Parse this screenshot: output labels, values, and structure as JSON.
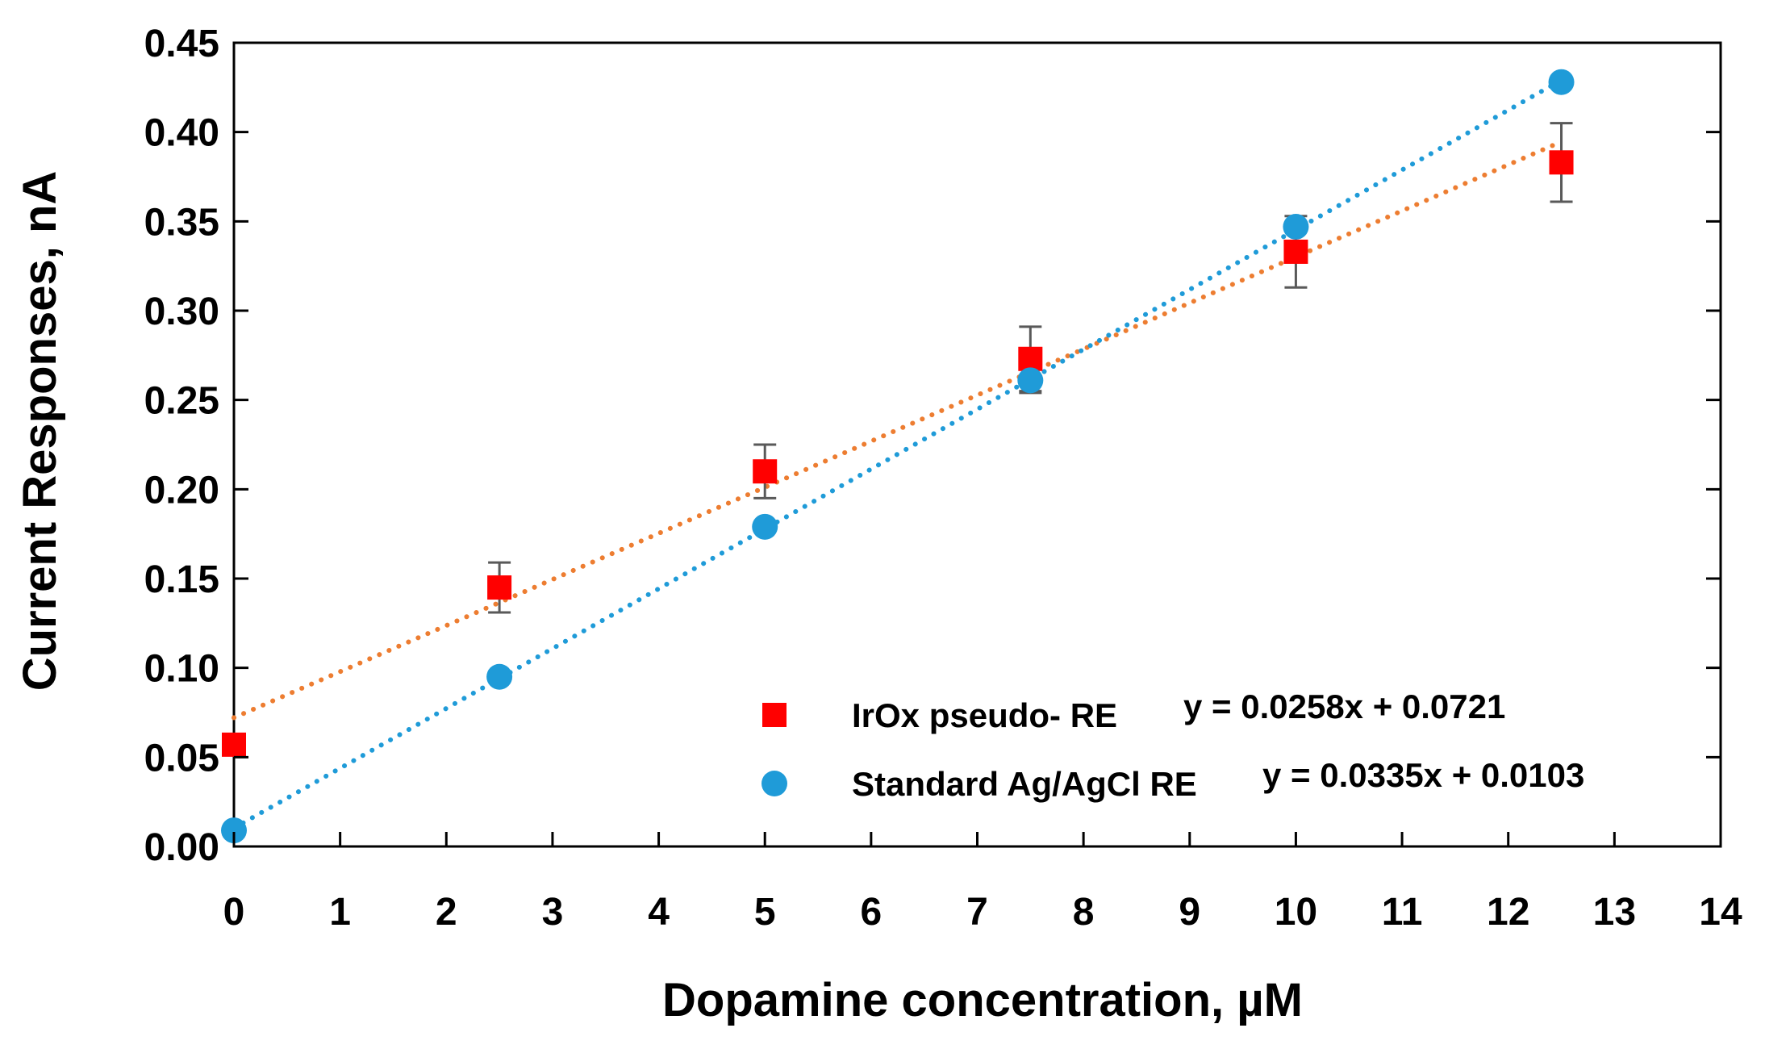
{
  "chart_data": {
    "type": "scatter",
    "xlabel": "Dopamine concentration, µM",
    "ylabel": "Current Responses, nA",
    "xlim": [
      0,
      14
    ],
    "ylim": [
      0,
      0.45
    ],
    "xticks": [
      "0",
      "1",
      "2",
      "3",
      "4",
      "5",
      "6",
      "7",
      "8",
      "9",
      "10",
      "11",
      "12",
      "13",
      "14"
    ],
    "yticks": [
      "0.00",
      "0.05",
      "0.10",
      "0.15",
      "0.20",
      "0.25",
      "0.30",
      "0.35",
      "0.40",
      "0.45"
    ],
    "grid": false,
    "legend_position": "bottom-right",
    "series": [
      {
        "name": "IrOx pseudo- RE",
        "equation": "y = 0.0258x + 0.0721",
        "marker": "square",
        "color": "#ff0000",
        "trend_color": "#ed7d31",
        "x": [
          0,
          2.5,
          5,
          7.5,
          10,
          12.5
        ],
        "y": [
          0.057,
          0.145,
          0.21,
          0.273,
          0.333,
          0.383
        ],
        "error": [
          0,
          0.014,
          0.015,
          0.018,
          0.02,
          0.022
        ],
        "trend": {
          "slope": 0.0258,
          "intercept": 0.0721
        }
      },
      {
        "name": "Standard Ag/AgCl RE",
        "equation": "y = 0.0335x + 0.0103",
        "marker": "circle",
        "color": "#1f9bd8",
        "trend_color": "#1f9bd8",
        "x": [
          0,
          2.5,
          5,
          7.5,
          10,
          12.5
        ],
        "y": [
          0.009,
          0.095,
          0.179,
          0.261,
          0.347,
          0.428
        ],
        "error": [
          0,
          0,
          0,
          0.007,
          0,
          0
        ],
        "trend": {
          "slope": 0.0335,
          "intercept": 0.0103
        }
      }
    ]
  }
}
